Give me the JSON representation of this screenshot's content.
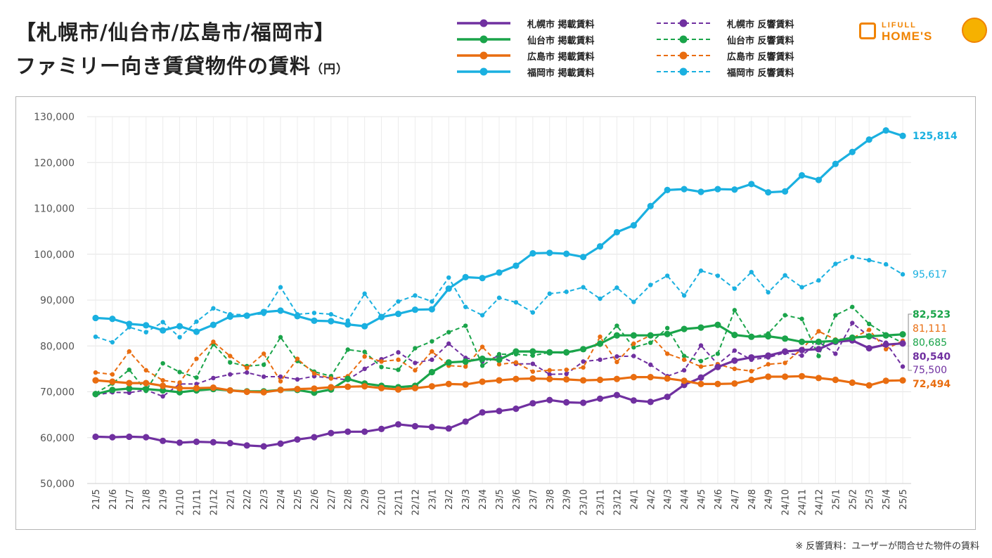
{
  "title": {
    "line1": "【札幌市/仙台市/広島市/福岡市】",
    "line2": "ファミリー向き賃貸物件の賃料",
    "unit": "（円）"
  },
  "logo": {
    "line1": "LIFULL",
    "line2": "HOME'S",
    "mark_icon": "house-icon",
    "face_icon": "mascot-icon"
  },
  "note": "※ 反響賃料：ユーザーが問合せた物件の賃料",
  "chart_data": {
    "type": "line",
    "ylim": [
      50000,
      130000
    ],
    "yticks": [
      "50,000",
      "60,000",
      "70,000",
      "80,000",
      "90,000",
      "100,000",
      "110,000",
      "120,000",
      "130,000"
    ],
    "yticks_values": [
      50000,
      60000,
      70000,
      80000,
      90000,
      100000,
      110000,
      120000,
      130000
    ],
    "categories": [
      "21/5",
      "21/6",
      "21/7",
      "21/8",
      "21/9",
      "21/10",
      "21/11",
      "21/12",
      "22/1",
      "22/2",
      "22/3",
      "22/4",
      "22/5",
      "22/6",
      "22/7",
      "22/8",
      "22/9",
      "22/10",
      "22/11",
      "22/12",
      "23/1",
      "23/2",
      "23/3",
      "23/4",
      "23/5",
      "23/6",
      "23/7",
      "23/8",
      "23/9",
      "23/10",
      "23/11",
      "23/12",
      "24/1",
      "24/2",
      "24/3",
      "24/4",
      "24/5",
      "24/6",
      "24/7",
      "24/8",
      "24/9",
      "24/10",
      "24/11",
      "24/12",
      "25/1",
      "25/2",
      "25/3",
      "25/4",
      "25/5"
    ],
    "series": [
      {
        "name": "札幌市 掲載賃料",
        "color": "#7030a0",
        "style": "solid",
        "end_label": "80,540",
        "values": [
          60200,
          60100,
          60200,
          60100,
          59300,
          58900,
          59100,
          59000,
          58800,
          58300,
          58100,
          58700,
          59600,
          60100,
          61000,
          61300,
          61300,
          61900,
          62900,
          62500,
          62300,
          62000,
          63500,
          65500,
          65800,
          66300,
          67500,
          68200,
          67700,
          67600,
          68500,
          69300,
          68100,
          67800,
          68900,
          71500,
          73100,
          75400,
          76800,
          77500,
          77900,
          78800,
          79100,
          79300,
          80900,
          81200,
          79500,
          80300,
          80540
        ]
      },
      {
        "name": "仙台市 掲載賃料",
        "color": "#1aa44a",
        "style": "solid",
        "end_label": "82,523",
        "values": [
          69500,
          70400,
          70700,
          70600,
          70300,
          69900,
          70300,
          70600,
          70300,
          70100,
          70100,
          70400,
          70400,
          69800,
          70500,
          72800,
          71800,
          71300,
          71000,
          71300,
          74300,
          76400,
          76600,
          77200,
          77000,
          78800,
          78800,
          78600,
          78600,
          79300,
          80500,
          82300,
          82300,
          82300,
          82600,
          83700,
          84000,
          84600,
          82400,
          82000,
          82100,
          81600,
          80900,
          80900,
          81100,
          81800,
          82100,
          82300,
          82523
        ]
      },
      {
        "name": "広島市 掲載賃料",
        "color": "#e96d10",
        "style": "solid",
        "end_label": "72,494",
        "values": [
          72500,
          72200,
          71900,
          71900,
          71300,
          70800,
          70800,
          70900,
          70300,
          70000,
          69900,
          70400,
          70600,
          70700,
          71000,
          71100,
          71200,
          70800,
          70500,
          70800,
          71200,
          71700,
          71600,
          72200,
          72500,
          72800,
          72900,
          72800,
          72700,
          72500,
          72600,
          72800,
          73200,
          73200,
          72900,
          72400,
          71700,
          71700,
          71800,
          72600,
          73300,
          73300,
          73400,
          73000,
          72600,
          72000,
          71400,
          72400,
          72494
        ]
      },
      {
        "name": "福岡市 掲載賃料",
        "color": "#1ab0e0",
        "style": "solid",
        "end_label": "125,814",
        "values": [
          86100,
          85900,
          84800,
          84500,
          83400,
          84300,
          83100,
          84600,
          86400,
          86600,
          87400,
          87700,
          86500,
          85500,
          85400,
          84700,
          84300,
          86300,
          87000,
          87900,
          88000,
          92500,
          95000,
          94800,
          96000,
          97500,
          100200,
          100300,
          100100,
          99400,
          101700,
          104800,
          106300,
          110500,
          114000,
          114200,
          113600,
          114200,
          114100,
          115300,
          113500,
          113700,
          117200,
          116200,
          119700,
          122300,
          125000,
          127000,
          125814
        ]
      },
      {
        "name": "札幌市 反響賃料",
        "color": "#7030a0",
        "style": "dashed",
        "end_label": "75,500",
        "values": [
          69300,
          69900,
          69800,
          70400,
          69000,
          71700,
          71700,
          73000,
          73800,
          74200,
          73300,
          73300,
          72700,
          73400,
          73000,
          72600,
          75000,
          77100,
          78600,
          76300,
          77000,
          80500,
          77400,
          76600,
          77800,
          76100,
          76100,
          73800,
          73900,
          76600,
          77000,
          77700,
          77800,
          75900,
          73400,
          74700,
          80100,
          76000,
          79000,
          77000,
          77500,
          78500,
          77900,
          80900,
          78300,
          85000,
          82100,
          80700,
          75500
        ]
      },
      {
        "name": "仙台市 反響賃料",
        "color": "#1aa44a",
        "style": "dashed",
        "end_label": "80,685",
        "values": [
          69700,
          71800,
          74800,
          70200,
          76200,
          74300,
          73100,
          80400,
          76400,
          75600,
          75900,
          81900,
          76700,
          74400,
          73400,
          79200,
          78700,
          75400,
          74800,
          79500,
          81000,
          83000,
          84400,
          75700,
          78200,
          78200,
          77900,
          78600,
          78400,
          79300,
          80400,
          84400,
          79700,
          80700,
          83900,
          77800,
          76700,
          78300,
          87800,
          81900,
          82700,
          86700,
          85900,
          77800,
          86700,
          88500,
          84800,
          82500,
          80685
        ]
      },
      {
        "name": "広島市 反響賃料",
        "color": "#e96d10",
        "style": "dashed",
        "end_label": "81,111",
        "values": [
          74200,
          73800,
          78800,
          74700,
          72500,
          72000,
          77200,
          80900,
          77800,
          75200,
          78300,
          72300,
          77200,
          74000,
          72900,
          73400,
          77700,
          76600,
          77000,
          74700,
          78800,
          75700,
          75500,
          79800,
          76000,
          76400,
          74400,
          74700,
          74800,
          75300,
          82000,
          76500,
          80500,
          82300,
          78300,
          77000,
          75500,
          76000,
          75000,
          74500,
          76000,
          76300,
          79300,
          83200,
          81400,
          81700,
          83500,
          79300,
          81111
        ]
      },
      {
        "name": "福岡市 反響賃料",
        "color": "#1ab0e0",
        "style": "dashed",
        "end_label": "95,617",
        "values": [
          82000,
          80800,
          84100,
          83000,
          85200,
          81900,
          85300,
          88200,
          86900,
          86800,
          87000,
          92800,
          86900,
          87200,
          86900,
          85500,
          91400,
          86400,
          89700,
          91000,
          89700,
          94900,
          88500,
          86700,
          90500,
          89500,
          87300,
          91400,
          91800,
          92800,
          90300,
          92700,
          89600,
          93300,
          95300,
          91000,
          96400,
          95300,
          92500,
          96100,
          91700,
          95400,
          92800,
          94300,
          97900,
          99400,
          98700,
          97800,
          95617
        ]
      }
    ]
  }
}
